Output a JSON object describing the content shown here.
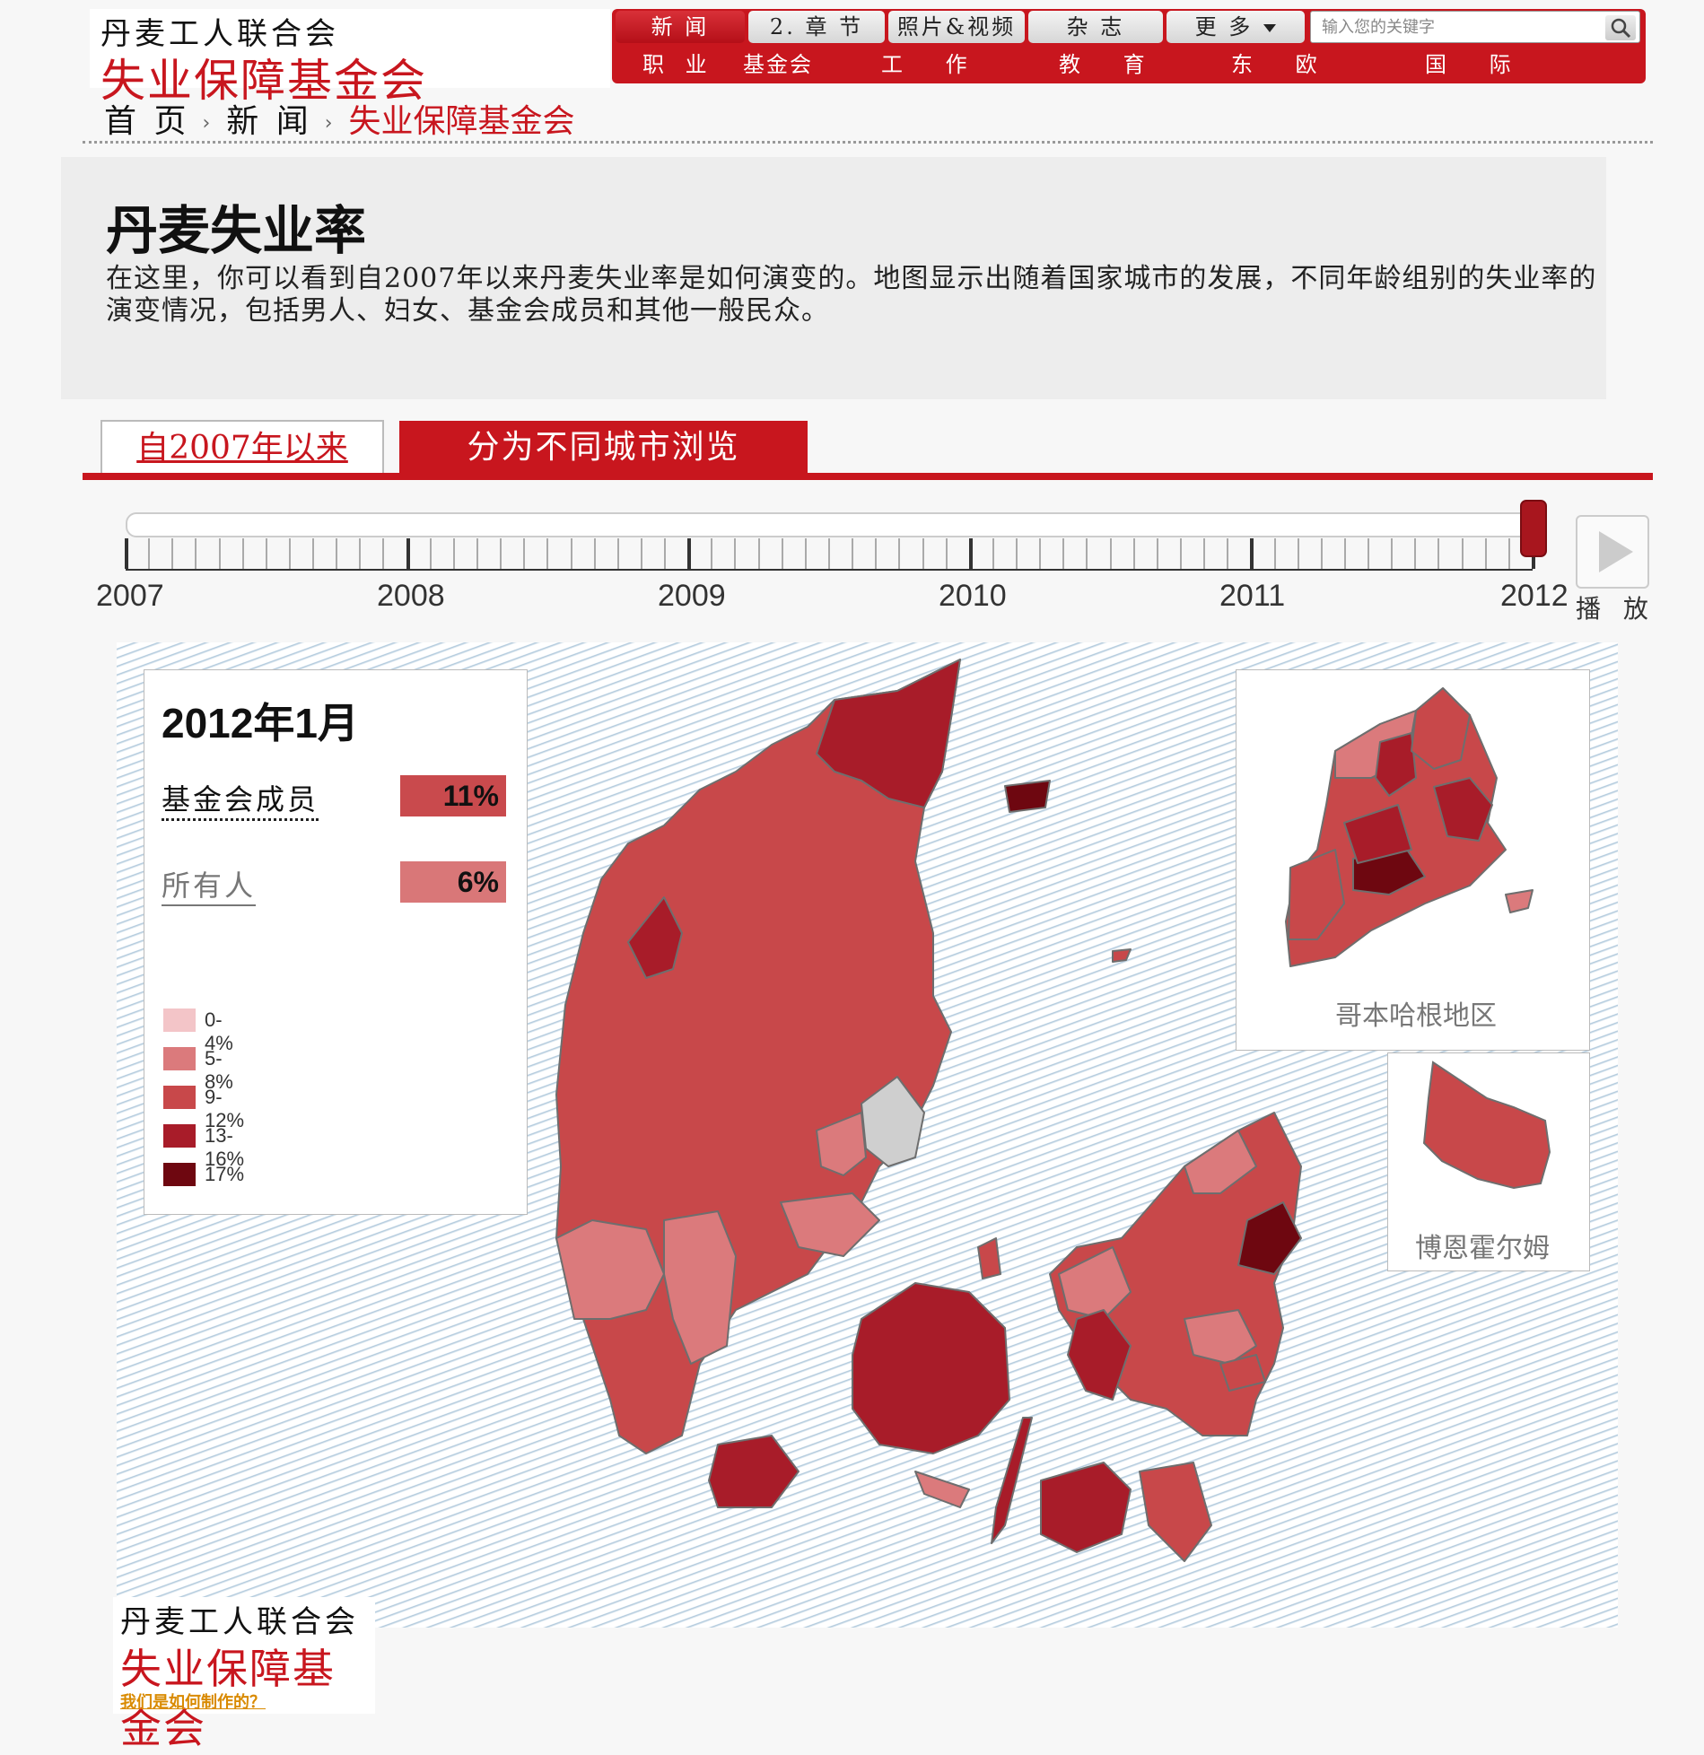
{
  "brand": {
    "org": "丹麦工人联合会",
    "fund": "失业保障基金会"
  },
  "nav": {
    "top": [
      "新 闻",
      "2. 章 节",
      "照片&视频",
      "杂 志",
      "更 多"
    ],
    "bottom": [
      "职 业",
      "基金会",
      "工 作",
      "教 育",
      "东 欧",
      "国 际"
    ],
    "search_placeholder": "输入您的关键字"
  },
  "breadcrumb": [
    "首 页",
    "新 闻",
    "失业保障基金会"
  ],
  "page": {
    "title": "丹麦失业率",
    "description": "在这里，你可以看到自2007年以来丹麦失业率是如何演变的。地图显示出随着国家城市的发展，不同年龄组别的失业率的演变情况，包括男人、妇女、基金会成员和其他一般民众。"
  },
  "tabs": [
    "自2007年以来",
    "分为不同城市浏览"
  ],
  "timeline": {
    "years": [
      "2007",
      "2008",
      "2009",
      "2010",
      "2011",
      "2012"
    ],
    "play_label": "播 放",
    "position": 1.0
  },
  "panel": {
    "date": "2012年1月",
    "stats": [
      {
        "label": "基金会成员",
        "value": "11%",
        "color": "#c94a4d"
      },
      {
        "label": "所有人",
        "value": "6%",
        "color": "#d97778"
      }
    ],
    "legend": [
      {
        "label": "0-4%",
        "color": "#f3c5c8"
      },
      {
        "label": "5-8%",
        "color": "#db7a7c"
      },
      {
        "label": "9-12%",
        "color": "#c8484a"
      },
      {
        "label": "13-16%",
        "color": "#a81c29"
      },
      {
        "label": "17%",
        "color": "#6e0710"
      }
    ]
  },
  "insets": {
    "copenhagen": "哥本哈根地区",
    "bornholm": "博恩霍尔姆"
  },
  "footer": {
    "org": "丹麦工人联合会",
    "fund": "失业保障基金会",
    "how": "我们是如何制作的？"
  },
  "colors": {
    "brand_red": "#c8161e",
    "border": "#6e6e6e",
    "no_data": "#cfcfcf"
  }
}
